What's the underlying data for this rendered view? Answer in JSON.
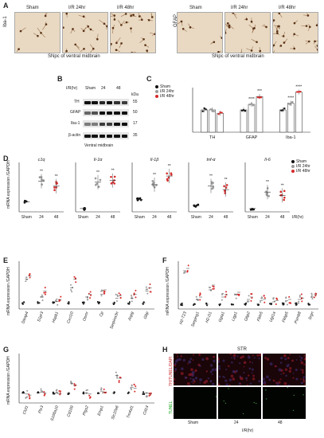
{
  "panels": {
    "A": {
      "label": "A",
      "marker_left": "Iba-1",
      "marker_right": "GFAP",
      "groups": [
        "Sham",
        "I/R 24hr",
        "I/R 48hr"
      ],
      "caption": "SNpc of ventral midbrain"
    },
    "B": {
      "label": "B",
      "row_header": "I/R(hr)",
      "lanes": [
        "Sham",
        "24",
        "48"
      ],
      "rows": [
        "TH",
        "GFAP",
        "Iba-1",
        "β-actin"
      ],
      "kda_label": "kDa",
      "kda": [
        "55",
        "50",
        "17",
        "35"
      ],
      "caption": "Ventral midbrain"
    },
    "C": {
      "label": "C",
      "legend": [
        "Sham",
        "I/R 24hr",
        "I/R 48hr"
      ],
      "sig": [
        "****",
        "***",
        "****",
        "****"
      ]
    },
    "D": {
      "label": "D",
      "ylabel_line1": "mRNA expression",
      "ylabel_line2": "/GAPDH",
      "genes": [
        "c1q",
        "Il-1α",
        "Il-1β",
        "tnf-α",
        "Il-6"
      ],
      "x_categories": [
        "Sham",
        "24",
        "48"
      ],
      "x_title": "I/R(hr)",
      "legend": [
        "Sham",
        "I/R 24hr",
        "I/R 48hr"
      ]
    },
    "E": {
      "label": "E",
      "ylabel_line1": "mRNA expression",
      "ylabel_line2": "/GAPDH",
      "genes": [
        "Steap4",
        "S1pr3",
        "Hspb1",
        "Cxcl10",
        "Osmr",
        "Cp",
        "Serpina3n",
        "Aspg",
        "Gbp"
      ]
    },
    "F": {
      "label": "F",
      "ylabel_line1": "mRNA expression",
      "ylabel_line2": "/GAPDH",
      "genes": [
        "H2-T23",
        "Serping1",
        "H2-D1",
        "Ggta1",
        "Ligp1",
        "Gbp2",
        "Fbln5",
        "Ugt1a",
        "Fkbp5",
        "Psmb8",
        "Srgn"
      ]
    },
    "G": {
      "label": "G",
      "ylabel_line1": "mRNA expression",
      "ylabel_line2": "/GAPDH",
      "genes": [
        "Clcf1",
        "Ptx3",
        "S100a10",
        "Cd109",
        "Ptgs2",
        "Emp1",
        "Slc10a6",
        "Tm4sf1",
        "Cd14"
      ]
    },
    "H": {
      "label": "H",
      "region": "STR",
      "row1": "TH/TUNEL/DAPI",
      "row2": "TUNEL",
      "groups": [
        "Sham",
        "24",
        "48"
      ],
      "x_title": "I/R(hr)"
    }
  },
  "colors": {
    "sham": "#111111",
    "h24": "#9a9a9a",
    "h48": "#d62a2a"
  },
  "chart_data": [
    {
      "panel": "C",
      "type": "bar",
      "categories": [
        "TH",
        "GFAP",
        "Iba-1"
      ],
      "series": [
        {
          "name": "Sham",
          "values": [
            1.0,
            1.0,
            1.0
          ]
        },
        {
          "name": "I/R 24hr",
          "values": [
            1.0,
            1.25,
            1.3
          ]
        },
        {
          "name": "I/R 48hr",
          "values": [
            0.85,
            1.6,
            1.8
          ]
        }
      ],
      "ylim": [
        0,
        2
      ]
    },
    {
      "panel": "D",
      "type": "scatter",
      "categories": [
        "Sham",
        "24",
        "48"
      ],
      "series": [
        {
          "name": "c1q",
          "values": [
            1.0,
            3.1,
            2.6
          ],
          "ylim": [
            0,
            5
          ]
        },
        {
          "name": "Il-1α",
          "values": [
            1.0,
            9.0,
            9.5
          ],
          "ylim": [
            0,
            15
          ]
        },
        {
          "name": "Il-1β",
          "values": [
            1.0,
            2.2,
            2.9
          ],
          "ylim": [
            0,
            4
          ]
        },
        {
          "name": "tnf-α",
          "values": [
            1.0,
            4.2,
            3.6
          ],
          "ylim": [
            0,
            8
          ]
        },
        {
          "name": "Il-6",
          "values": [
            1.0,
            6.0,
            5.0
          ],
          "ylim": [
            0,
            15
          ]
        }
      ]
    },
    {
      "panel": "E",
      "type": "scatter",
      "series": [
        {
          "name": "Sham",
          "values": [
            1,
            1,
            1,
            1,
            1,
            1,
            1,
            1,
            1
          ]
        },
        {
          "name": "I/R 24hr",
          "values": [
            5,
            2,
            1.3,
            3.5,
            2,
            2.5,
            1.8,
            1.8,
            3
          ]
        },
        {
          "name": "I/R 48hr",
          "values": [
            5.5,
            3,
            1.5,
            5,
            2.5,
            3.2,
            2.2,
            2.5,
            3.5
          ]
        }
      ],
      "ylim": [
        0,
        8
      ]
    },
    {
      "panel": "F",
      "type": "scatter",
      "series": [
        {
          "name": "Sham",
          "values": [
            1,
            1,
            1,
            1,
            1,
            1,
            1,
            1,
            1,
            1,
            1
          ]
        },
        {
          "name": "I/R 24hr",
          "values": [
            8,
            2,
            4,
            2.5,
            3,
            2,
            1.8,
            1.5,
            1.7,
            2,
            2.5
          ]
        },
        {
          "name": "I/R 48hr",
          "values": [
            8.5,
            2.5,
            5,
            3,
            3.5,
            2.5,
            2,
            1.8,
            2,
            2.3,
            3
          ]
        }
      ],
      "ylim": [
        0,
        10
      ]
    },
    {
      "panel": "G",
      "type": "scatter",
      "series": [
        {
          "name": "Sham",
          "values": [
            1,
            1,
            1,
            1,
            1,
            1,
            1,
            1,
            1
          ]
        },
        {
          "name": "I/R 24hr",
          "values": [
            0.9,
            1.1,
            1,
            2,
            1,
            1.2,
            2.8,
            1.6,
            1
          ]
        },
        {
          "name": "I/R 48hr",
          "values": [
            0.8,
            1,
            0.9,
            1.8,
            0.9,
            1.1,
            2.5,
            1.5,
            0.9
          ]
        }
      ],
      "ylim": [
        0,
        5
      ]
    }
  ]
}
